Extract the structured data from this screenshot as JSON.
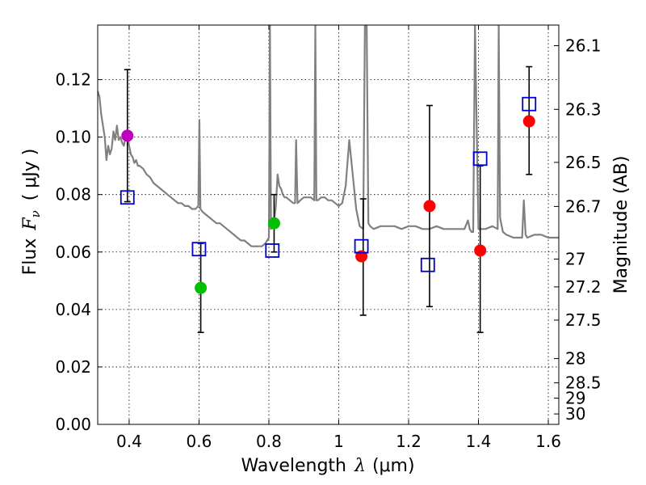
{
  "chart_data": {
    "type": "scatter",
    "title": "",
    "xlabel": "Wavelength",
    "xlabel_symbol": "λ",
    "xlabel_unit": "(μm)",
    "ylabel": "Flux",
    "ylabel_symbol": "F",
    "ylabel_subscript": "ν",
    "ylabel_unit": "( μJy )",
    "ylabel_right": "Magnitude (AB)",
    "xlim": [
      0.31,
      1.63
    ],
    "ylim": [
      0.0,
      0.139
    ],
    "grid": true,
    "x_ticks": [
      {
        "value": 0.4,
        "label": "0.4"
      },
      {
        "value": 0.6,
        "label": "0.6"
      },
      {
        "value": 0.8,
        "label": "0.8"
      },
      {
        "value": 1.0,
        "label": "1"
      },
      {
        "value": 1.2,
        "label": "1.2"
      },
      {
        "value": 1.4,
        "label": "1.4"
      },
      {
        "value": 1.6,
        "label": "1.6"
      }
    ],
    "y_ticks": [
      {
        "value": 0.0,
        "label": "0.00"
      },
      {
        "value": 0.02,
        "label": "0.02"
      },
      {
        "value": 0.04,
        "label": "0.04"
      },
      {
        "value": 0.06,
        "label": "0.06"
      },
      {
        "value": 0.08,
        "label": "0.08"
      },
      {
        "value": 0.1,
        "label": "0.10"
      },
      {
        "value": 0.12,
        "label": "0.12"
      }
    ],
    "right_ticks": [
      {
        "mag": 26.1,
        "label": "26.1"
      },
      {
        "mag": 26.3,
        "label": "26.3"
      },
      {
        "mag": 26.5,
        "label": "26.5"
      },
      {
        "mag": 26.7,
        "label": "26.7"
      },
      {
        "mag": 27.0,
        "label": "27"
      },
      {
        "mag": 27.2,
        "label": "27.2"
      },
      {
        "mag": 27.5,
        "label": "27.5"
      },
      {
        "mag": 28.0,
        "label": "28"
      },
      {
        "mag": 28.5,
        "label": "28.5"
      },
      {
        "mag": 29.0,
        "label": "29"
      },
      {
        "mag": 30.0,
        "label": "30"
      }
    ],
    "series": [
      {
        "name": "model-spectrum",
        "kind": "line",
        "color": "#808080",
        "x": [
          0.31,
          0.315,
          0.32,
          0.325,
          0.33,
          0.335,
          0.34,
          0.345,
          0.35,
          0.355,
          0.36,
          0.365,
          0.37,
          0.375,
          0.38,
          0.385,
          0.39,
          0.395,
          0.4,
          0.405,
          0.41,
          0.415,
          0.42,
          0.425,
          0.43,
          0.44,
          0.45,
          0.46,
          0.47,
          0.48,
          0.49,
          0.5,
          0.51,
          0.52,
          0.53,
          0.54,
          0.55,
          0.56,
          0.57,
          0.58,
          0.59,
          0.598,
          0.601,
          0.604,
          0.61,
          0.62,
          0.63,
          0.64,
          0.65,
          0.66,
          0.67,
          0.68,
          0.69,
          0.7,
          0.71,
          0.72,
          0.73,
          0.74,
          0.75,
          0.76,
          0.77,
          0.78,
          0.79,
          0.8,
          0.803,
          0.806,
          0.81,
          0.815,
          0.82,
          0.825,
          0.83,
          0.835,
          0.84,
          0.845,
          0.85,
          0.86,
          0.87,
          0.875,
          0.878,
          0.882,
          0.89,
          0.9,
          0.91,
          0.92,
          0.93,
          0.933,
          0.936,
          0.94,
          0.95,
          0.96,
          0.97,
          0.98,
          0.99,
          1.0,
          1.01,
          1.02,
          1.03,
          1.04,
          1.05,
          1.06,
          1.07,
          1.075,
          1.08,
          1.085,
          1.09,
          1.1,
          1.12,
          1.14,
          1.16,
          1.18,
          1.2,
          1.22,
          1.24,
          1.26,
          1.28,
          1.3,
          1.32,
          1.34,
          1.36,
          1.37,
          1.375,
          1.38,
          1.385,
          1.39,
          1.4,
          1.42,
          1.44,
          1.455,
          1.458,
          1.462,
          1.465,
          1.47,
          1.48,
          1.5,
          1.52,
          1.525,
          1.53,
          1.535,
          1.54,
          1.56,
          1.58,
          1.6,
          1.62,
          1.63
        ],
        "y": [
          0.116,
          0.114,
          0.108,
          0.104,
          0.1,
          0.092,
          0.097,
          0.094,
          0.096,
          0.102,
          0.099,
          0.104,
          0.099,
          0.1,
          0.098,
          0.097,
          0.1,
          0.101,
          0.097,
          0.094,
          0.093,
          0.091,
          0.092,
          0.09,
          0.09,
          0.089,
          0.087,
          0.086,
          0.084,
          0.083,
          0.082,
          0.081,
          0.08,
          0.079,
          0.078,
          0.077,
          0.077,
          0.076,
          0.076,
          0.075,
          0.075,
          0.076,
          0.106,
          0.075,
          0.074,
          0.073,
          0.072,
          0.071,
          0.07,
          0.07,
          0.069,
          0.068,
          0.067,
          0.066,
          0.065,
          0.064,
          0.064,
          0.063,
          0.062,
          0.062,
          0.062,
          0.062,
          0.063,
          0.065,
          0.139,
          0.068,
          0.069,
          0.071,
          0.076,
          0.087,
          0.083,
          0.082,
          0.08,
          0.079,
          0.079,
          0.078,
          0.077,
          0.077,
          0.099,
          0.077,
          0.078,
          0.079,
          0.079,
          0.079,
          0.078,
          0.139,
          0.078,
          0.078,
          0.079,
          0.079,
          0.078,
          0.078,
          0.077,
          0.076,
          0.077,
          0.083,
          0.099,
          0.087,
          0.075,
          0.069,
          0.068,
          0.139,
          0.139,
          0.07,
          0.069,
          0.068,
          0.069,
          0.069,
          0.069,
          0.068,
          0.069,
          0.069,
          0.068,
          0.068,
          0.069,
          0.068,
          0.068,
          0.068,
          0.068,
          0.071,
          0.068,
          0.067,
          0.067,
          0.139,
          0.068,
          0.068,
          0.069,
          0.068,
          0.139,
          0.072,
          0.07,
          0.067,
          0.066,
          0.065,
          0.065,
          0.065,
          0.078,
          0.066,
          0.065,
          0.066,
          0.066,
          0.065,
          0.065,
          0.065
        ]
      },
      {
        "name": "observed-magenta",
        "kind": "points",
        "marker": "circle",
        "color": "#c000c0",
        "points": [
          {
            "x": 0.395,
            "y": 0.1005
          }
        ]
      },
      {
        "name": "observed-green",
        "kind": "points",
        "marker": "circle",
        "color": "#00c000",
        "points": [
          {
            "x": 0.605,
            "y": 0.0475
          },
          {
            "x": 0.815,
            "y": 0.07
          }
        ]
      },
      {
        "name": "observed-red",
        "kind": "points",
        "marker": "circle",
        "color": "#ff0000",
        "points": [
          {
            "x": 1.065,
            "y": 0.0585
          },
          {
            "x": 1.26,
            "y": 0.076
          },
          {
            "x": 1.405,
            "y": 0.0605
          },
          {
            "x": 1.545,
            "y": 0.1055
          }
        ]
      },
      {
        "name": "model-squares",
        "kind": "points",
        "marker": "square",
        "color": "#0000cc",
        "points": [
          {
            "x": 0.395,
            "y": 0.079
          },
          {
            "x": 0.6,
            "y": 0.061
          },
          {
            "x": 0.81,
            "y": 0.0605
          },
          {
            "x": 1.065,
            "y": 0.062
          },
          {
            "x": 1.255,
            "y": 0.0555
          },
          {
            "x": 1.405,
            "y": 0.0925
          },
          {
            "x": 1.545,
            "y": 0.1115
          }
        ]
      },
      {
        "name": "error-bars",
        "kind": "errorbars",
        "color": "#000000",
        "bars": [
          {
            "x": 0.395,
            "low": 0.0775,
            "high": 0.1235
          },
          {
            "x": 0.605,
            "low": 0.032,
            "high": 0.063
          },
          {
            "x": 0.815,
            "low": 0.06,
            "high": 0.08
          },
          {
            "x": 1.07,
            "low": 0.038,
            "high": 0.0785
          },
          {
            "x": 1.26,
            "low": 0.041,
            "high": 0.111
          },
          {
            "x": 1.405,
            "low": 0.032,
            "high": 0.09
          },
          {
            "x": 1.545,
            "low": 0.087,
            "high": 0.1245
          }
        ]
      }
    ]
  }
}
